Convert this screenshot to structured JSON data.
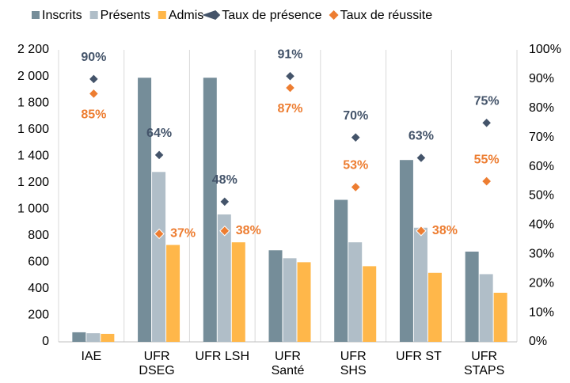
{
  "chart_data": {
    "type": "bar",
    "categories": [
      "IAE",
      "UFR DSEG",
      "UFR LSH",
      "UFR Santé",
      "UFR SHS",
      "UFR ST",
      "UFR STAPS"
    ],
    "series": [
      {
        "name": "Inscrits",
        "color": "#758d99",
        "values": [
          72,
          1990,
          1990,
          690,
          1070,
          1370,
          680
        ]
      },
      {
        "name": "Présents",
        "color": "#b0bec8",
        "values": [
          65,
          1280,
          960,
          630,
          750,
          860,
          510
        ]
      },
      {
        "name": "Admis",
        "color": "#ffb74a",
        "values": [
          60,
          730,
          750,
          600,
          570,
          520,
          370
        ]
      },
      {
        "name": "Taux de présence",
        "color": "#44546a",
        "axis": "y2",
        "values": [
          90,
          64,
          48,
          91,
          70,
          63,
          75
        ],
        "value_labels": [
          "90%",
          "64%",
          "48%",
          "91%",
          "70%",
          "63%",
          "75%"
        ]
      },
      {
        "name": "Taux de réussite",
        "color": "#ed7d31",
        "axis": "y2",
        "values": [
          85,
          37,
          38,
          87,
          53,
          38,
          55
        ],
        "value_labels": [
          "85%",
          "37%",
          "38%",
          "87%",
          "53%",
          "38%",
          "55%"
        ]
      }
    ],
    "ylim": [
      0,
      2200
    ],
    "yticks": [
      0,
      200,
      400,
      600,
      800,
      {
        "value": 1000,
        "label": "1 000"
      },
      {
        "value": 1200,
        "label": "1 200"
      },
      {
        "value": 1400,
        "label": "1 400"
      },
      {
        "value": 1600,
        "label": "1 600"
      },
      {
        "value": 1800,
        "label": "1 800"
      },
      {
        "value": 2000,
        "label": "2 000"
      },
      {
        "value": 2200,
        "label": "2 200"
      }
    ],
    "y2lim": [
      0,
      100
    ],
    "y2ticks": [
      {
        "value": 0,
        "label": "0%"
      },
      {
        "value": 10,
        "label": "10%"
      },
      {
        "value": 20,
        "label": "20%"
      },
      {
        "value": 30,
        "label": "30%"
      },
      {
        "value": 40,
        "label": "40%"
      },
      {
        "value": 50,
        "label": "50%"
      },
      {
        "value": 60,
        "label": "60%"
      },
      {
        "value": 70,
        "label": "70%"
      },
      {
        "value": 80,
        "label": "80%"
      },
      {
        "value": 90,
        "label": "90%"
      },
      {
        "value": 100,
        "label": "100%"
      }
    ],
    "grid": true
  }
}
